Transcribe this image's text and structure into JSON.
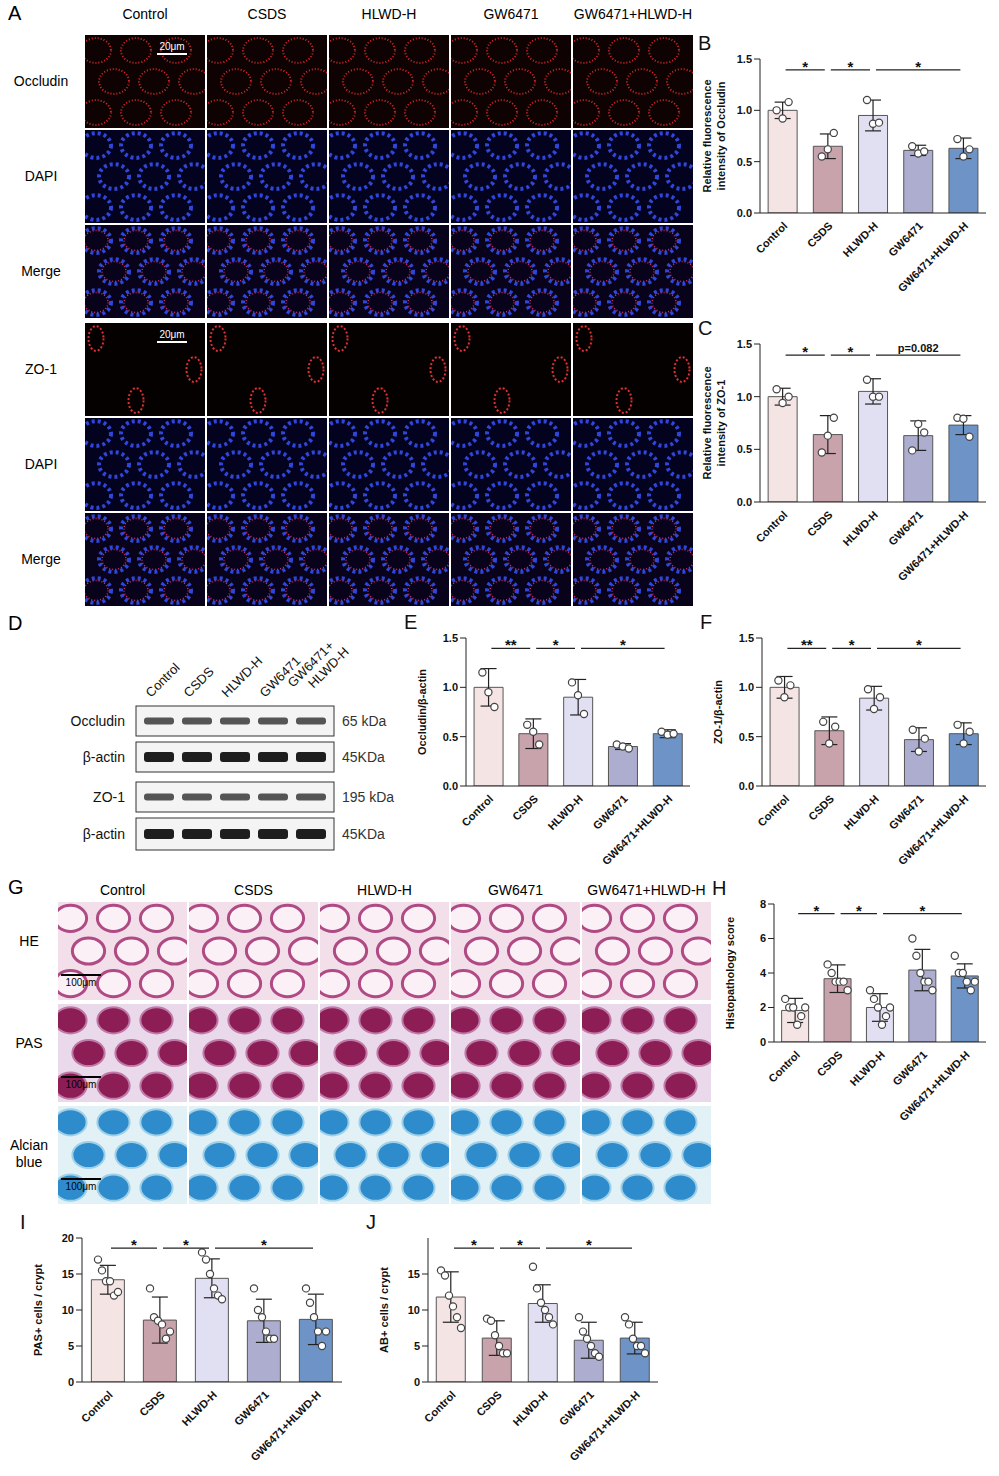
{
  "chart_data": [
    {
      "panel": "B",
      "type": "bar",
      "ylabel": "Relative fluorescence intensity of Occludin",
      "categories": [
        "Control",
        "CSDS",
        "HLWD-H",
        "GW6471",
        "GW6471+HLWD-H"
      ],
      "values": [
        1.0,
        0.65,
        0.95,
        0.61,
        0.63
      ],
      "error": [
        0.08,
        0.12,
        0.15,
        0.05,
        0.1
      ],
      "points": [
        [
          1.0,
          0.92,
          1.08
        ],
        [
          0.55,
          0.62,
          0.78
        ],
        [
          1.1,
          0.87,
          0.88
        ],
        [
          0.65,
          0.58,
          0.6
        ],
        [
          0.72,
          0.55,
          0.62
        ]
      ],
      "colors": [
        "#f5e4e4",
        "#c9a3ac",
        "#e1e0f3",
        "#adadd0",
        "#6e93c7"
      ],
      "ylim": [
        0,
        1.5
      ],
      "yticks": [
        {
          "value": 0,
          "label": "0.0"
        },
        0.5,
        {
          "value": 1,
          "label": "1.0"
        },
        1.5
      ],
      "significance": [
        {
          "from": "Control",
          "to": "CSDS",
          "label": "*"
        },
        {
          "from": "CSDS",
          "to": "HLWD-H",
          "label": "*"
        },
        {
          "from": "HLWD-H",
          "to": "GW6471+HLWD-H",
          "label": "*"
        }
      ]
    },
    {
      "panel": "C",
      "type": "bar",
      "ylabel": "Relative fluorescence intensity of ZO-1",
      "categories": [
        "Control",
        "CSDS",
        "HLWD-H",
        "GW6471",
        "GW6471+HLWD-H"
      ],
      "values": [
        1.0,
        0.64,
        1.05,
        0.63,
        0.73
      ],
      "error": [
        0.08,
        0.18,
        0.12,
        0.14,
        0.09
      ],
      "points": [
        [
          1.07,
          0.94,
          1.0
        ],
        [
          0.47,
          0.63,
          0.8
        ],
        [
          1.16,
          1.0,
          1.0
        ],
        [
          0.49,
          0.74,
          0.66
        ],
        [
          0.8,
          0.79,
          0.62
        ]
      ],
      "colors": [
        "#f5e4e4",
        "#c9a3ac",
        "#e1e0f3",
        "#adadd0",
        "#6e93c7"
      ],
      "ylim": [
        0,
        1.5
      ],
      "yticks": [
        {
          "value": 0,
          "label": "0.0"
        },
        0.5,
        {
          "value": 1,
          "label": "1.0"
        },
        1.5
      ],
      "significance": [
        {
          "from": "Control",
          "to": "CSDS",
          "label": "*"
        },
        {
          "from": "CSDS",
          "to": "HLWD-H",
          "label": "*"
        },
        {
          "from": "HLWD-H",
          "to": "GW6471+HLWD-H",
          "label": "p=0.082"
        }
      ]
    },
    {
      "panel": "E",
      "type": "bar",
      "ylabel": "Occludin/β-actin",
      "categories": [
        "Control",
        "CSDS",
        "HLWD-H",
        "GW6471",
        "GW6471+HLWD-H"
      ],
      "values": [
        1.0,
        0.53,
        0.9,
        0.4,
        0.53
      ],
      "error": [
        0.19,
        0.15,
        0.18,
        0.03,
        0.04
      ],
      "points": [
        [
          1.15,
          0.95,
          0.8
        ],
        [
          0.62,
          0.55,
          0.42
        ],
        [
          1.05,
          0.92,
          0.73
        ],
        [
          0.42,
          0.4,
          0.38
        ],
        [
          0.55,
          0.52,
          0.53
        ]
      ],
      "colors": [
        "#f5e4e4",
        "#c9a3ac",
        "#e1e0f3",
        "#adadd0",
        "#6e93c7"
      ],
      "ylim": [
        0,
        1.5
      ],
      "yticks": [
        {
          "value": 0,
          "label": "0.0"
        },
        0.5,
        {
          "value": 1,
          "label": "1.0"
        },
        1.5
      ],
      "significance": [
        {
          "from": "Control",
          "to": "CSDS",
          "label": "**"
        },
        {
          "from": "CSDS",
          "to": "HLWD-H",
          "label": "*"
        },
        {
          "from": "HLWD-H",
          "to": "GW6471+HLWD-H",
          "label": "*"
        }
      ]
    },
    {
      "panel": "F",
      "type": "bar",
      "ylabel": "ZO-1/β-actin",
      "categories": [
        "Control",
        "CSDS",
        "HLWD-H",
        "GW6471",
        "GW6471+HLWD-H"
      ],
      "values": [
        1.0,
        0.56,
        0.89,
        0.47,
        0.53
      ],
      "error": [
        0.11,
        0.14,
        0.12,
        0.12,
        0.11
      ],
      "points": [
        [
          1.07,
          0.9,
          1.02
        ],
        [
          0.65,
          0.43,
          0.6
        ],
        [
          0.98,
          0.78,
          0.9
        ],
        [
          0.57,
          0.35,
          0.48
        ],
        [
          0.62,
          0.43,
          0.55
        ]
      ],
      "colors": [
        "#f5e4e4",
        "#c9a3ac",
        "#e1e0f3",
        "#adadd0",
        "#6e93c7"
      ],
      "ylim": [
        0,
        1.5
      ],
      "yticks": [
        {
          "value": 0,
          "label": "0.0"
        },
        0.5,
        {
          "value": 1,
          "label": "1.0"
        },
        1.5
      ],
      "significance": [
        {
          "from": "Control",
          "to": "CSDS",
          "label": "**"
        },
        {
          "from": "CSDS",
          "to": "HLWD-H",
          "label": "*"
        },
        {
          "from": "HLWD-H",
          "to": "GW6471+HLWD-H",
          "label": "*"
        }
      ]
    },
    {
      "panel": "H",
      "type": "bar",
      "ylabel": "Histopathology score",
      "categories": [
        "Control",
        "CSDS",
        "HLWD-H",
        "GW6471",
        "GW6471+HLWD-H"
      ],
      "values": [
        1.83,
        3.67,
        2.0,
        4.17,
        3.83
      ],
      "error": [
        0.7,
        0.8,
        0.8,
        1.2,
        0.7
      ],
      "points": [
        [
          2.5,
          2,
          2,
          1,
          1.5,
          2
        ],
        [
          4.5,
          4,
          3.5,
          3.5,
          3.5,
          3
        ],
        [
          3,
          2.5,
          2,
          1,
          1.5,
          2
        ],
        [
          6,
          5,
          4,
          3.5,
          3.5,
          3
        ],
        [
          5,
          4,
          4,
          3.5,
          3,
          3.5
        ]
      ],
      "colors": [
        "#f5e4e4",
        "#c9a3ac",
        "#e1e0f3",
        "#adadd0",
        "#6e93c7"
      ],
      "ylim": [
        0,
        8
      ],
      "yticks": [
        0,
        2,
        4,
        6,
        8
      ],
      "significance": [
        {
          "from": "Control",
          "to": "CSDS",
          "label": "*"
        },
        {
          "from": "CSDS",
          "to": "HLWD-H",
          "label": "*"
        },
        {
          "from": "HLWD-H",
          "to": "GW6471+HLWD-H",
          "label": "*"
        }
      ]
    },
    {
      "panel": "I",
      "type": "bar",
      "ylabel": "PAS+ cells / crypt",
      "categories": [
        "Control",
        "CSDS",
        "HLWD-H",
        "GW6471",
        "GW6471+HLWD-H"
      ],
      "values": [
        14.2,
        8.6,
        14.4,
        8.5,
        8.7
      ],
      "error": [
        2.0,
        3.2,
        2.7,
        3.0,
        3.5
      ],
      "points": [
        [
          17,
          15.5,
          14,
          14,
          12,
          12.5
        ],
        [
          13,
          9,
          8.5,
          8,
          6,
          7
        ],
        [
          18,
          17,
          15,
          13,
          12,
          11.5
        ],
        [
          13,
          10,
          9,
          7,
          6,
          6
        ],
        [
          13,
          11,
          9,
          7,
          5,
          7
        ]
      ],
      "colors": [
        "#f5e4e4",
        "#c9a3ac",
        "#e1e0f3",
        "#adadd0",
        "#6e93c7"
      ],
      "ylim": [
        0,
        20
      ],
      "yticks": [
        0,
        5,
        10,
        15,
        20
      ],
      "significance": [
        {
          "from": "Control",
          "to": "CSDS",
          "label": "*"
        },
        {
          "from": "CSDS",
          "to": "HLWD-H",
          "label": "*"
        },
        {
          "from": "HLWD-H",
          "to": "GW6471+HLWD-H",
          "label": "*"
        }
      ]
    },
    {
      "panel": "J",
      "type": "bar",
      "ylabel": "AB+ cells / crypt",
      "categories": [
        "Control",
        "CSDS",
        "HLWD-H",
        "GW6471",
        "GW6471+HLWD-H"
      ],
      "values": [
        11.8,
        6.1,
        10.9,
        5.8,
        6.1
      ],
      "error": [
        3.5,
        2.4,
        2.6,
        2.5,
        2.2
      ],
      "points": [
        [
          15.5,
          14.8,
          12,
          10.5,
          9,
          7.5
        ],
        [
          8.8,
          8.5,
          6.5,
          5,
          4,
          4
        ],
        [
          16,
          13,
          11,
          10,
          9,
          8
        ],
        [
          9,
          7,
          6,
          5,
          4,
          3.5
        ],
        [
          9,
          8,
          6,
          5,
          5,
          4
        ]
      ],
      "colors": [
        "#f5e4e4",
        "#c9a3ac",
        "#e1e0f3",
        "#adadd0",
        "#6e93c7"
      ],
      "ylim": [
        0,
        20
      ],
      "yticks": [
        0,
        5,
        10,
        15
      ],
      "significance": [
        {
          "from": "Control",
          "to": "CSDS",
          "label": "*"
        },
        {
          "from": "CSDS",
          "to": "HLWD-H",
          "label": "*"
        },
        {
          "from": "HLWD-H",
          "to": "GW6471+HLWD-H",
          "label": "*"
        }
      ]
    }
  ],
  "figure_panels": {
    "fluorescence": {
      "panel": "A",
      "columns": [
        "Control",
        "CSDS",
        "HLWD-H",
        "GW6471",
        "GW6471+HLWD-H"
      ],
      "rows": [
        "Occludin",
        "DAPI",
        "Merge",
        "ZO-1",
        "DAPI",
        "Merge"
      ],
      "scale_bar": "20μm"
    },
    "western_blot": {
      "panel": "D",
      "lanes": [
        "Control",
        "CSDS",
        "HLWD-H",
        "GW6471",
        "GW6471+HLWD-H"
      ],
      "rows": [
        {
          "label": "Occludin",
          "size": "65 kDa"
        },
        {
          "label": "β-actin",
          "size": "45KDa"
        },
        {
          "label": "ZO-1",
          "size": "195 kDa"
        },
        {
          "label": "β-actin",
          "size": "45KDa"
        }
      ]
    },
    "histology": {
      "panel": "G",
      "columns": [
        "Control",
        "CSDS",
        "HLWD-H",
        "GW6471",
        "GW6471+HLWD-H"
      ],
      "rows": [
        "HE",
        "PAS",
        "Alcian blue"
      ],
      "scale_bar": "100μm"
    }
  }
}
